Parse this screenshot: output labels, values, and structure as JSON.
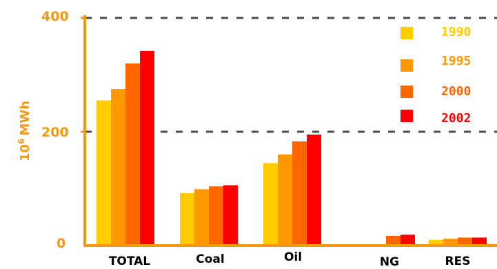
{
  "chart_data": {
    "type": "bar",
    "title": "",
    "ylabel": "10^6 MWh",
    "ylabel_base": "10",
    "ylabel_exp": "6",
    "ylabel_unit": "MWh",
    "categories": [
      "TOTAL",
      "Coal",
      "Oil",
      "NG",
      "RES"
    ],
    "series": [
      {
        "name": "1990",
        "color": "#FFCC00",
        "values": [
          255,
          92,
          145,
          0,
          10
        ]
      },
      {
        "name": "1995",
        "color": "#FF9900",
        "values": [
          275,
          99,
          160,
          0,
          12
        ]
      },
      {
        "name": "2000",
        "color": "#FF6600",
        "values": [
          320,
          104,
          183,
          17,
          14
        ]
      },
      {
        "name": "2002",
        "color": "#FF0000",
        "values": [
          342,
          106,
          195,
          19,
          14
        ]
      }
    ],
    "ylim": [
      0,
      400
    ],
    "yticks": [
      "0",
      "200",
      "400"
    ],
    "gridlines": [
      200,
      400
    ],
    "grid_style": "dashed",
    "legend_position": "top-right",
    "axis_color": "#F59A0E"
  }
}
